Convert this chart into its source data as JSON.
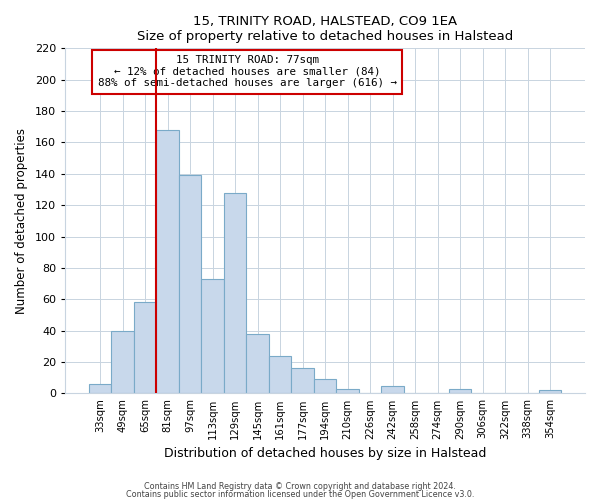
{
  "title": "15, TRINITY ROAD, HALSTEAD, CO9 1EA",
  "subtitle": "Size of property relative to detached houses in Halstead",
  "xlabel": "Distribution of detached houses by size in Halstead",
  "ylabel": "Number of detached properties",
  "bar_labels": [
    "33sqm",
    "49sqm",
    "65sqm",
    "81sqm",
    "97sqm",
    "113sqm",
    "129sqm",
    "145sqm",
    "161sqm",
    "177sqm",
    "194sqm",
    "210sqm",
    "226sqm",
    "242sqm",
    "258sqm",
    "274sqm",
    "290sqm",
    "306sqm",
    "322sqm",
    "338sqm",
    "354sqm"
  ],
  "bar_values": [
    6,
    40,
    58,
    168,
    139,
    73,
    128,
    38,
    24,
    16,
    9,
    3,
    0,
    5,
    0,
    0,
    3,
    0,
    0,
    0,
    2
  ],
  "bar_color": "#c8d8eb",
  "bar_edge_color": "#7aaac8",
  "ylim": [
    0,
    220
  ],
  "yticks": [
    0,
    20,
    40,
    60,
    80,
    100,
    120,
    140,
    160,
    180,
    200,
    220
  ],
  "property_line_color": "#cc0000",
  "annotation_line1": "15 TRINITY ROAD: 77sqm",
  "annotation_line2": "← 12% of detached houses are smaller (84)",
  "annotation_line3": "88% of semi-detached houses are larger (616) →",
  "annotation_box_edge_color": "#cc0000",
  "footnote1": "Contains HM Land Registry data © Crown copyright and database right 2024.",
  "footnote2": "Contains public sector information licensed under the Open Government Licence v3.0.",
  "grid_color": "#c8d4e0",
  "background_color": "#ffffff",
  "plot_bg_color": "#ffffff"
}
